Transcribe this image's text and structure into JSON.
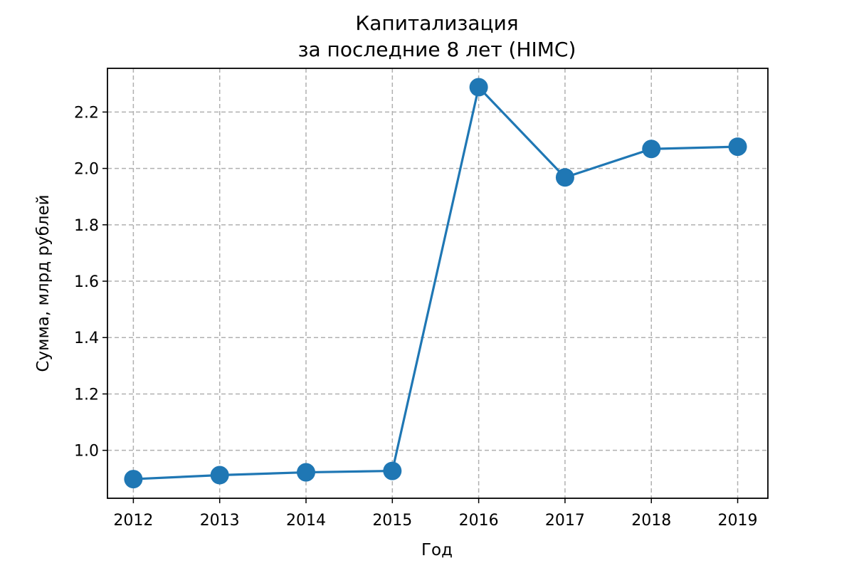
{
  "chart_data": {
    "type": "line",
    "title": [
      "Капитализация",
      "за последние 8 лет (HIMC)"
    ],
    "xlabel": "Год",
    "ylabel": "Сумма, млрд рублей",
    "x": [
      2012,
      2013,
      2014,
      2015,
      2016,
      2017,
      2018,
      2019
    ],
    "series": [
      {
        "values": [
          0.898,
          0.912,
          0.922,
          0.927,
          2.288,
          1.968,
          2.069,
          2.077
        ],
        "color": "#1f77b4",
        "marker": "circle"
      }
    ],
    "xlim": [
      2011.7,
      2019.35
    ],
    "ylim": [
      0.83,
      2.355
    ],
    "yticks": [
      1.0,
      1.2,
      1.4,
      1.6,
      1.8,
      2.0,
      2.2
    ],
    "ytick_labels": [
      "1.0",
      "1.2",
      "1.4",
      "1.6",
      "1.8",
      "2.0",
      "2.2"
    ],
    "xtick_labels": [
      "2012",
      "2013",
      "2014",
      "2015",
      "2016",
      "2017",
      "2018",
      "2019"
    ],
    "grid": true,
    "grid_style": "dashed",
    "legend": false
  }
}
